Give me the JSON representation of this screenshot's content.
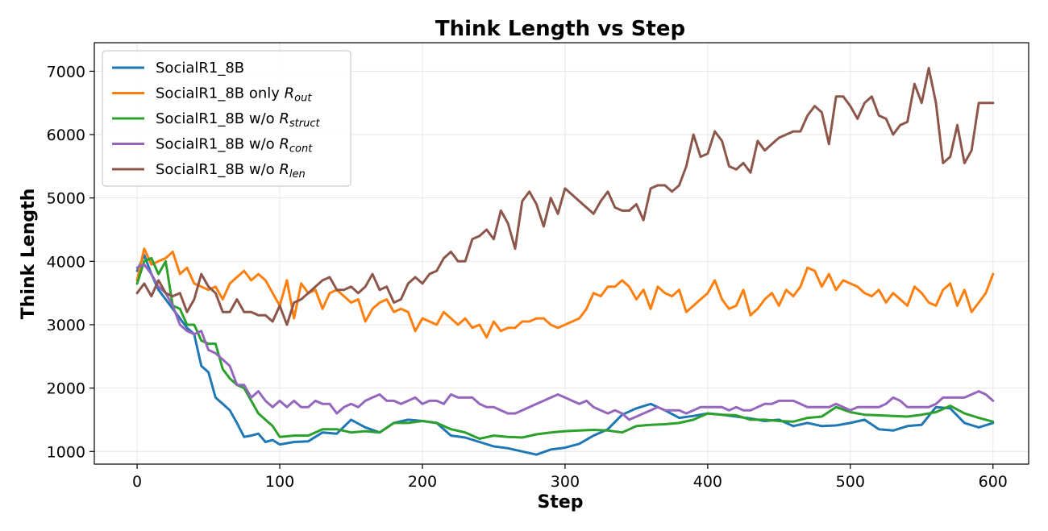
{
  "chart_data": {
    "type": "line",
    "title": "Think Length vs Step",
    "xlabel": "Step",
    "ylabel": "Think Length",
    "xlim": [
      -30,
      625
    ],
    "ylim": [
      800,
      7450
    ],
    "xticks": [
      0,
      100,
      200,
      300,
      400,
      500,
      600
    ],
    "yticks": [
      1000,
      2000,
      3000,
      4000,
      5000,
      6000,
      7000
    ],
    "grid": true,
    "legend_position": "top-left",
    "series": [
      {
        "name": "SocialR1_8B",
        "name_parts": {
          "main": "SocialR1_8B",
          "suffix": "",
          "sub": ""
        },
        "color": "#1f77b4",
        "x": [
          0,
          5,
          10,
          15,
          20,
          25,
          30,
          35,
          40,
          45,
          50,
          55,
          60,
          65,
          70,
          75,
          80,
          85,
          90,
          95,
          100,
          110,
          120,
          130,
          140,
          150,
          160,
          170,
          180,
          190,
          200,
          210,
          220,
          230,
          240,
          250,
          260,
          270,
          280,
          290,
          300,
          310,
          320,
          330,
          340,
          350,
          360,
          370,
          380,
          390,
          400,
          410,
          420,
          430,
          440,
          450,
          460,
          470,
          480,
          490,
          500,
          510,
          520,
          530,
          540,
          550,
          560,
          570,
          580,
          590,
          600
        ],
        "y": [
          3850,
          4100,
          3800,
          3550,
          3400,
          3250,
          3100,
          2950,
          2850,
          2350,
          2250,
          1850,
          1750,
          1650,
          1450,
          1230,
          1250,
          1280,
          1150,
          1180,
          1110,
          1150,
          1160,
          1300,
          1280,
          1500,
          1380,
          1300,
          1450,
          1500,
          1480,
          1450,
          1250,
          1220,
          1150,
          1080,
          1050,
          1000,
          950,
          1030,
          1060,
          1120,
          1250,
          1350,
          1580,
          1680,
          1750,
          1650,
          1530,
          1560,
          1600,
          1580,
          1550,
          1520,
          1480,
          1500,
          1400,
          1450,
          1400,
          1410,
          1450,
          1500,
          1350,
          1330,
          1400,
          1420,
          1700,
          1680,
          1450,
          1380,
          1450
        ]
      },
      {
        "name": "SocialR1_8B only R_out",
        "name_parts": {
          "main": "SocialR1_8B only ",
          "suffix": "R",
          "sub": "out"
        },
        "color": "#ff7f0e",
        "x": [
          0,
          5,
          10,
          15,
          20,
          25,
          30,
          35,
          40,
          45,
          50,
          55,
          60,
          65,
          70,
          75,
          80,
          85,
          90,
          95,
          100,
          105,
          110,
          115,
          120,
          125,
          130,
          135,
          140,
          145,
          150,
          155,
          160,
          165,
          170,
          175,
          180,
          185,
          190,
          195,
          200,
          205,
          210,
          215,
          220,
          225,
          230,
          235,
          240,
          245,
          250,
          255,
          260,
          265,
          270,
          275,
          280,
          285,
          290,
          295,
          300,
          305,
          310,
          315,
          320,
          325,
          330,
          335,
          340,
          345,
          350,
          355,
          360,
          365,
          370,
          375,
          380,
          385,
          390,
          395,
          400,
          405,
          410,
          415,
          420,
          425,
          430,
          435,
          440,
          445,
          450,
          455,
          460,
          465,
          470,
          475,
          480,
          485,
          490,
          495,
          500,
          505,
          510,
          515,
          520,
          525,
          530,
          535,
          540,
          545,
          550,
          555,
          560,
          565,
          570,
          575,
          580,
          585,
          590,
          595,
          600
        ],
        "y": [
          3700,
          4200,
          3950,
          4000,
          4050,
          4150,
          3800,
          3900,
          3650,
          3600,
          3550,
          3600,
          3400,
          3650,
          3750,
          3850,
          3700,
          3800,
          3700,
          3500,
          3300,
          3700,
          3100,
          3650,
          3500,
          3550,
          3250,
          3500,
          3550,
          3450,
          3350,
          3400,
          3050,
          3250,
          3350,
          3400,
          3200,
          3250,
          3200,
          2900,
          3100,
          3050,
          3000,
          3200,
          3100,
          3000,
          3100,
          2950,
          3000,
          2800,
          3050,
          2900,
          2950,
          2950,
          3050,
          3050,
          3100,
          3100,
          3000,
          2950,
          3000,
          3050,
          3100,
          3250,
          3500,
          3450,
          3600,
          3600,
          3700,
          3600,
          3400,
          3550,
          3250,
          3600,
          3500,
          3450,
          3550,
          3200,
          3300,
          3400,
          3500,
          3700,
          3400,
          3250,
          3300,
          3550,
          3150,
          3250,
          3400,
          3500,
          3300,
          3550,
          3450,
          3600,
          3900,
          3850,
          3600,
          3800,
          3550,
          3700,
          3650,
          3600,
          3500,
          3450,
          3550,
          3350,
          3500,
          3400,
          3300,
          3600,
          3500,
          3350,
          3300,
          3550,
          3650,
          3300,
          3550,
          3200,
          3350,
          3500,
          3800
        ]
      },
      {
        "name": "SocialR1_8B w/o R_struct",
        "name_parts": {
          "main": "SocialR1_8B w/o ",
          "suffix": "R",
          "sub": "struct"
        },
        "color": "#2ca02c",
        "x": [
          0,
          5,
          10,
          15,
          20,
          25,
          30,
          35,
          40,
          45,
          50,
          55,
          60,
          65,
          70,
          75,
          80,
          85,
          90,
          95,
          100,
          110,
          120,
          130,
          140,
          150,
          160,
          170,
          180,
          190,
          200,
          210,
          220,
          230,
          240,
          250,
          260,
          270,
          280,
          290,
          300,
          310,
          320,
          330,
          340,
          350,
          360,
          370,
          380,
          390,
          400,
          410,
          420,
          430,
          440,
          450,
          460,
          470,
          480,
          490,
          500,
          510,
          520,
          530,
          540,
          550,
          560,
          570,
          580,
          590,
          600
        ],
        "y": [
          3650,
          4000,
          4050,
          3800,
          4000,
          3300,
          3250,
          3000,
          3000,
          2750,
          2700,
          2700,
          2300,
          2150,
          2050,
          2000,
          1800,
          1600,
          1500,
          1400,
          1230,
          1250,
          1250,
          1350,
          1350,
          1300,
          1320,
          1300,
          1450,
          1450,
          1480,
          1450,
          1350,
          1300,
          1200,
          1250,
          1230,
          1220,
          1270,
          1300,
          1320,
          1330,
          1340,
          1330,
          1300,
          1400,
          1420,
          1430,
          1450,
          1500,
          1600,
          1580,
          1570,
          1500,
          1500,
          1480,
          1470,
          1530,
          1550,
          1700,
          1620,
          1580,
          1570,
          1560,
          1550,
          1580,
          1620,
          1720,
          1600,
          1530,
          1470
        ]
      },
      {
        "name": "SocialR1_8B w/o R_cont",
        "name_parts": {
          "main": "SocialR1_8B w/o ",
          "suffix": "R",
          "sub": "cont"
        },
        "color": "#9467bd",
        "x": [
          0,
          5,
          10,
          15,
          20,
          25,
          30,
          35,
          40,
          45,
          50,
          55,
          60,
          65,
          70,
          75,
          80,
          85,
          90,
          95,
          100,
          105,
          110,
          115,
          120,
          125,
          130,
          135,
          140,
          145,
          150,
          155,
          160,
          165,
          170,
          175,
          180,
          185,
          190,
          195,
          200,
          205,
          210,
          215,
          220,
          225,
          230,
          235,
          240,
          245,
          250,
          255,
          260,
          265,
          270,
          275,
          280,
          285,
          290,
          295,
          300,
          305,
          310,
          315,
          320,
          325,
          330,
          335,
          340,
          345,
          350,
          355,
          360,
          365,
          370,
          375,
          380,
          385,
          390,
          395,
          400,
          405,
          410,
          415,
          420,
          425,
          430,
          435,
          440,
          445,
          450,
          455,
          460,
          465,
          470,
          475,
          480,
          485,
          490,
          495,
          500,
          505,
          510,
          515,
          520,
          525,
          530,
          535,
          540,
          545,
          550,
          555,
          560,
          565,
          570,
          575,
          580,
          585,
          590,
          595,
          600
        ],
        "y": [
          3900,
          3950,
          3800,
          3600,
          3500,
          3300,
          3000,
          2900,
          2850,
          2900,
          2600,
          2550,
          2450,
          2350,
          2050,
          2050,
          1850,
          1950,
          1800,
          1700,
          1800,
          1700,
          1800,
          1700,
          1700,
          1800,
          1750,
          1750,
          1600,
          1700,
          1750,
          1700,
          1800,
          1850,
          1900,
          1800,
          1800,
          1750,
          1800,
          1850,
          1750,
          1800,
          1800,
          1750,
          1900,
          1850,
          1850,
          1850,
          1750,
          1700,
          1700,
          1650,
          1600,
          1600,
          1650,
          1700,
          1750,
          1800,
          1850,
          1900,
          1850,
          1800,
          1750,
          1800,
          1700,
          1650,
          1600,
          1650,
          1600,
          1500,
          1550,
          1600,
          1650,
          1700,
          1650,
          1650,
          1650,
          1600,
          1650,
          1700,
          1700,
          1700,
          1700,
          1650,
          1700,
          1650,
          1650,
          1700,
          1750,
          1750,
          1800,
          1800,
          1800,
          1750,
          1700,
          1700,
          1700,
          1700,
          1750,
          1700,
          1650,
          1700,
          1700,
          1700,
          1700,
          1750,
          1850,
          1800,
          1700,
          1700,
          1700,
          1700,
          1750,
          1850,
          1850,
          1850,
          1850,
          1900,
          1950,
          1900,
          1800
        ]
      },
      {
        "name": "SocialR1_8B w/o R_len",
        "name_parts": {
          "main": "SocialR1_8B w/o ",
          "suffix": "R",
          "sub": "len"
        },
        "color": "#8c564b",
        "x": [
          0,
          5,
          10,
          15,
          20,
          25,
          30,
          35,
          40,
          45,
          50,
          55,
          60,
          65,
          70,
          75,
          80,
          85,
          90,
          95,
          100,
          105,
          110,
          115,
          120,
          125,
          130,
          135,
          140,
          145,
          150,
          155,
          160,
          165,
          170,
          175,
          180,
          185,
          190,
          195,
          200,
          205,
          210,
          215,
          220,
          225,
          230,
          235,
          240,
          245,
          250,
          255,
          260,
          265,
          270,
          275,
          280,
          285,
          290,
          295,
          300,
          305,
          310,
          315,
          320,
          325,
          330,
          335,
          340,
          345,
          350,
          355,
          360,
          365,
          370,
          375,
          380,
          385,
          390,
          395,
          400,
          405,
          410,
          415,
          420,
          425,
          430,
          435,
          440,
          445,
          450,
          455,
          460,
          465,
          470,
          475,
          480,
          485,
          490,
          495,
          500,
          505,
          510,
          515,
          520,
          525,
          530,
          535,
          540,
          545,
          550,
          555,
          560,
          565,
          570,
          575,
          580,
          585,
          590,
          595,
          600
        ],
        "y": [
          3500,
          3650,
          3450,
          3700,
          3500,
          3450,
          3500,
          3200,
          3400,
          3800,
          3600,
          3500,
          3200,
          3200,
          3400,
          3200,
          3200,
          3150,
          3150,
          3050,
          3300,
          3000,
          3350,
          3400,
          3500,
          3600,
          3700,
          3750,
          3550,
          3550,
          3600,
          3500,
          3600,
          3800,
          3550,
          3600,
          3350,
          3400,
          3650,
          3750,
          3650,
          3800,
          3850,
          4050,
          4150,
          4000,
          4000,
          4350,
          4400,
          4500,
          4350,
          4800,
          4600,
          4200,
          4950,
          5100,
          4900,
          4550,
          5000,
          4750,
          5150,
          5050,
          4950,
          4850,
          4750,
          4950,
          5100,
          4850,
          4800,
          4800,
          4900,
          4650,
          5150,
          5200,
          5200,
          5100,
          5200,
          5500,
          6000,
          5650,
          5700,
          6050,
          5900,
          5500,
          5450,
          5550,
          5400,
          5900,
          5750,
          5850,
          5950,
          6000,
          6050,
          6050,
          6300,
          6450,
          6350,
          5850,
          6600,
          6600,
          6450,
          6250,
          6500,
          6600,
          6300,
          6250,
          6000,
          6150,
          6200,
          6800,
          6500,
          7050,
          6500,
          5550,
          5650,
          6150,
          5550,
          5750,
          6500,
          6500,
          6500
        ]
      }
    ]
  }
}
